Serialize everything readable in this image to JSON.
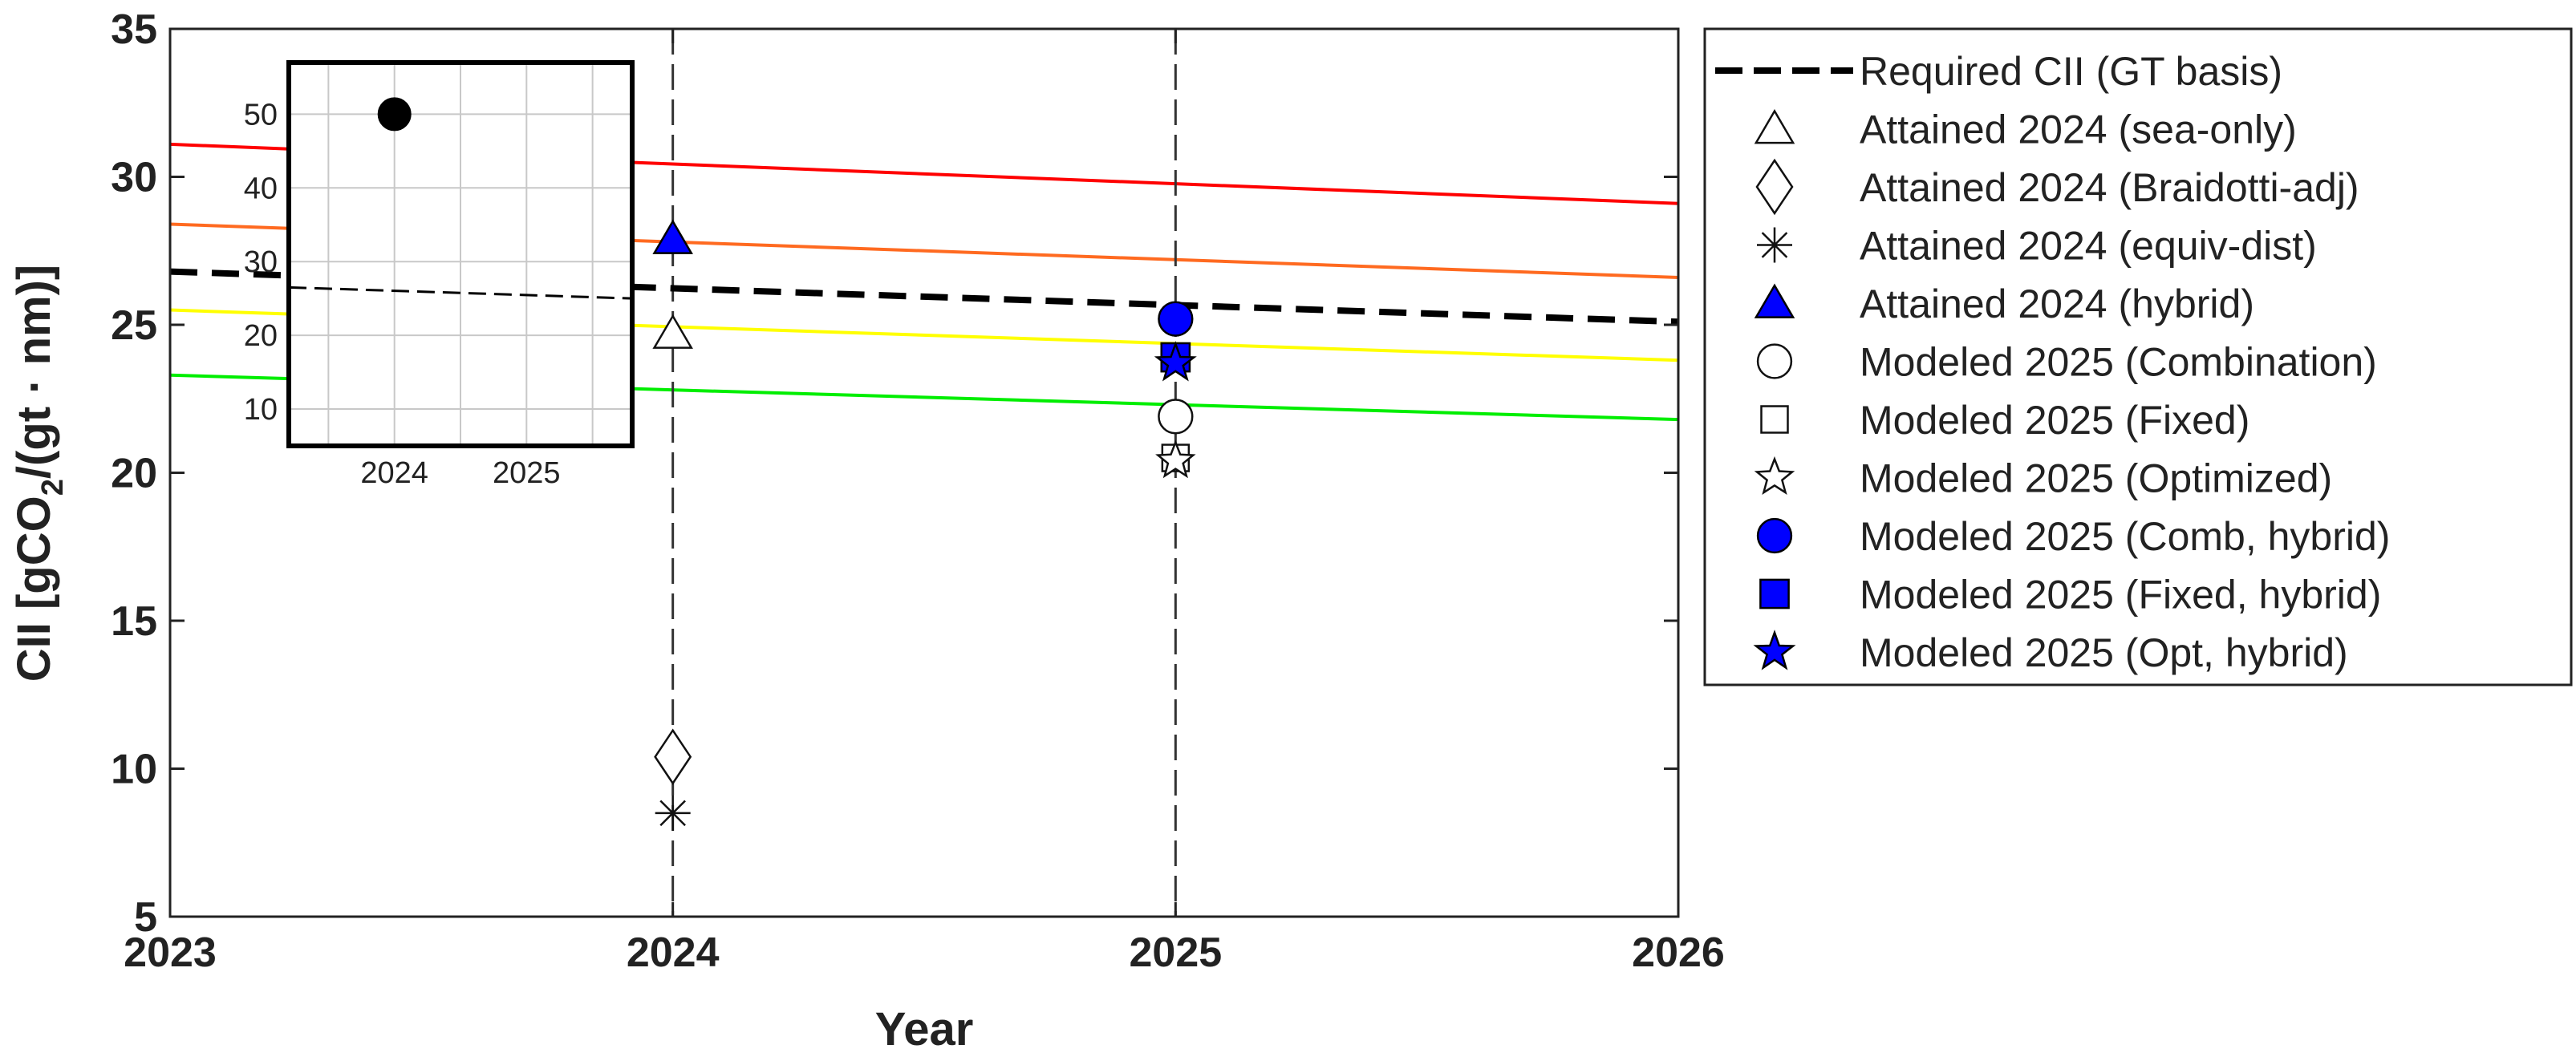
{
  "chart_data": [
    {
      "type": "scatter",
      "title": "",
      "xlabel": "Year",
      "ylabel_prefix": "CII  [gCO",
      "ylabel_sub": "2",
      "ylabel_suffix": "/(gt · nm)]",
      "xlim": [
        2023,
        2026
      ],
      "ylim": [
        5,
        35
      ],
      "xticks": [
        2023,
        2024,
        2025,
        2026
      ],
      "yticks": [
        5,
        10,
        15,
        20,
        25,
        30,
        35
      ],
      "grid": false,
      "legend_position": "outside-right",
      "vertical_reference_lines": [
        2024,
        2025
      ],
      "rating_boundaries": [
        {
          "color": "#ff0000",
          "x": [
            2023,
            2026
          ],
          "y": [
            31.1,
            29.1
          ]
        },
        {
          "color": "#ff6a20",
          "x": [
            2023,
            2026
          ],
          "y": [
            28.4,
            26.6
          ]
        },
        {
          "color": "#ffff00",
          "x": [
            2023,
            2026
          ],
          "y": [
            25.5,
            23.8
          ]
        },
        {
          "color": "#00ee00",
          "x": [
            2023,
            2026
          ],
          "y": [
            23.3,
            21.8
          ]
        }
      ],
      "series": [
        {
          "name": "Required CII (GT basis)",
          "marker": "dashed-line",
          "x": [
            2023,
            2026
          ],
          "y": [
            26.8,
            25.1
          ]
        },
        {
          "name": "Attained 2024 (sea-only)",
          "marker": "triangle-open",
          "x": [
            2024
          ],
          "y": [
            24.7
          ]
        },
        {
          "name": "Attained 2024 (Braidotti-adj)",
          "marker": "diamond-open",
          "x": [
            2024
          ],
          "y": [
            10.4
          ]
        },
        {
          "name": "Attained 2024 (equiv-dist)",
          "marker": "asterisk",
          "x": [
            2024
          ],
          "y": [
            8.5
          ]
        },
        {
          "name": "Attained 2024 (hybrid)",
          "marker": "triangle-filled",
          "x": [
            2024
          ],
          "y": [
            27.9
          ]
        },
        {
          "name": "Modeled 2025 (Combination)",
          "marker": "circle-open",
          "x": [
            2025
          ],
          "y": [
            21.9
          ]
        },
        {
          "name": "Modeled 2025 (Fixed)",
          "marker": "square-open",
          "x": [
            2025
          ],
          "y": [
            20.5
          ]
        },
        {
          "name": "Modeled 2025 (Optimized)",
          "marker": "star-open",
          "x": [
            2025
          ],
          "y": [
            20.4
          ]
        },
        {
          "name": "Modeled 2025 (Comb, hybrid)",
          "marker": "circle-filled",
          "x": [
            2025
          ],
          "y": [
            25.2
          ]
        },
        {
          "name": "Modeled 2025 (Fixed, hybrid)",
          "marker": "square-filled",
          "x": [
            2025
          ],
          "y": [
            23.9
          ]
        },
        {
          "name": "Modeled 2025 (Opt, hybrid)",
          "marker": "star-filled",
          "x": [
            2025
          ],
          "y": [
            23.7
          ]
        }
      ],
      "colors": {
        "hybrid": "#0000ff",
        "required": "#000000",
        "refline": "#333333"
      }
    },
    {
      "type": "scatter",
      "title": "",
      "xlim": [
        2023.2,
        2025.8
      ],
      "ylim": [
        5,
        57
      ],
      "xticks": [
        2024,
        2025
      ],
      "yticks": [
        10,
        20,
        30,
        40,
        50
      ],
      "grid": true,
      "series": [
        {
          "marker": "circle-filled",
          "x": [
            2024
          ],
          "y": [
            50
          ]
        },
        {
          "marker": "dashed-line",
          "x": [
            2023.2,
            2025.8
          ],
          "y": [
            26.5,
            25.0
          ]
        }
      ]
    }
  ]
}
